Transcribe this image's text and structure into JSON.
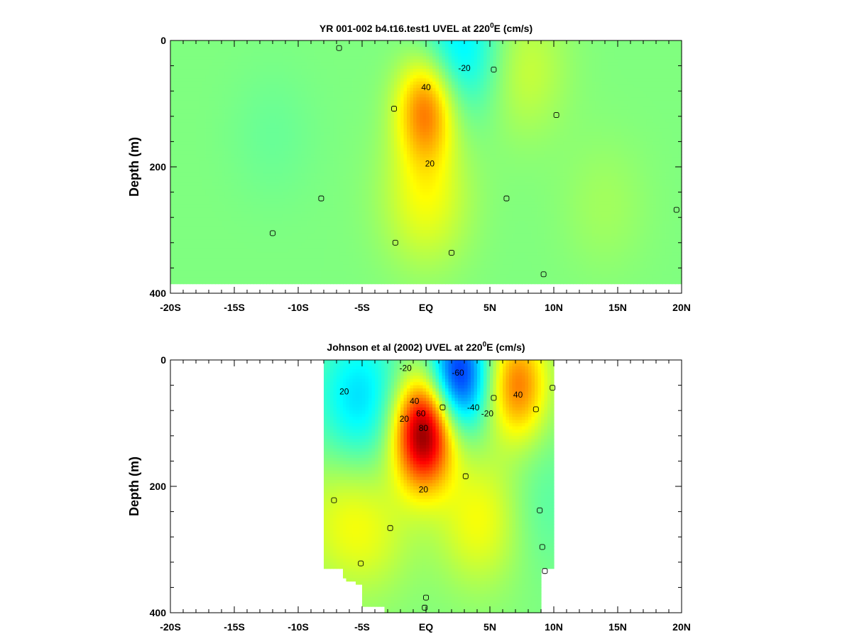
{
  "chart_data": [
    {
      "type": "heatmap",
      "title": "YR 001-002 b4.t16.test1 UVEL at 220",
      "title_superscript": "0",
      "title_suffix": "E (cm/s)",
      "xlabel": "",
      "ylabel": "Depth (m)",
      "xlim": [
        -20,
        20
      ],
      "ylim": [
        400,
        0
      ],
      "x_tick_labels": [
        "-20S",
        "-15S",
        "-10S",
        "-5S",
        "EQ",
        "5N",
        "10N",
        "15N",
        "20N"
      ],
      "y_tick_labels": [
        "0",
        "200",
        "400"
      ],
      "data_extent": {
        "lat": [
          -20,
          20
        ],
        "depth": [
          0,
          385
        ]
      },
      "features": [
        {
          "lat": 0,
          "depth": 105,
          "value": 48
        },
        {
          "lat": 0,
          "depth": 250,
          "value": 20
        },
        {
          "lat": 2.6,
          "depth": 15,
          "value": -28
        },
        {
          "lat": 7.5,
          "depth": 45,
          "value": 14
        },
        {
          "lat": -12,
          "depth": 150,
          "value": -4
        },
        {
          "lat": 14,
          "depth": 260,
          "value": 6
        }
      ],
      "contour_labels": [
        {
          "text": "40",
          "lat": 0,
          "depth": 74
        },
        {
          "text": "-20",
          "lat": 3,
          "depth": 44
        },
        {
          "text": "20",
          "lat": 0.3,
          "depth": 195
        },
        {
          "text": "0",
          "lat": -12,
          "depth": 305
        },
        {
          "text": "0",
          "lat": -8.2,
          "depth": 250
        },
        {
          "text": "0",
          "lat": -2.5,
          "depth": 108
        },
        {
          "text": "0",
          "lat": -2.4,
          "depth": 320
        },
        {
          "text": "0",
          "lat": 5.3,
          "depth": 46
        },
        {
          "text": "0",
          "lat": 10.2,
          "depth": 118
        },
        {
          "text": "0",
          "lat": 6.3,
          "depth": 250
        },
        {
          "text": "0",
          "lat": 2,
          "depth": 336
        },
        {
          "text": "0",
          "lat": 9.2,
          "depth": 370
        },
        {
          "text": "0",
          "lat": 19.6,
          "depth": 268
        },
        {
          "text": "0",
          "lat": -6.8,
          "depth": 12
        }
      ]
    },
    {
      "type": "heatmap",
      "title": "Johnson et al (2002) UVEL at 220",
      "title_superscript": "0",
      "title_suffix": "E (cm/s)",
      "xlabel": "",
      "ylabel": "Depth (m)",
      "xlim": [
        -20,
        20
      ],
      "ylim": [
        400,
        0
      ],
      "x_tick_labels": [
        "-20S",
        "-15S",
        "-10S",
        "-5S",
        "EQ",
        "5N",
        "10N",
        "15N",
        "20N"
      ],
      "y_tick_labels": [
        "0",
        "200",
        "400"
      ],
      "data_extent": {
        "lat": [
          -8,
          10
        ],
        "depth": [
          0,
          400
        ]
      },
      "features": [
        {
          "lat": -0.2,
          "depth": 115,
          "value": 90
        },
        {
          "lat": 2.5,
          "depth": 25,
          "value": -62
        },
        {
          "lat": 7.2,
          "depth": 40,
          "value": 45
        },
        {
          "lat": -5.2,
          "depth": 60,
          "value": -28
        },
        {
          "lat": -7.2,
          "depth": 250,
          "value": 12
        },
        {
          "lat": -4.2,
          "depth": 270,
          "value": 14
        },
        {
          "lat": 4.3,
          "depth": 250,
          "value": 22
        },
        {
          "lat": 8.8,
          "depth": 230,
          "value": -8
        }
      ],
      "contour_labels": [
        {
          "text": "-20",
          "lat": -1.6,
          "depth": 13
        },
        {
          "text": "-60",
          "lat": 2.5,
          "depth": 20
        },
        {
          "text": "20",
          "lat": -6.4,
          "depth": 50
        },
        {
          "text": "40",
          "lat": 7.2,
          "depth": 55
        },
        {
          "text": "40",
          "lat": -0.9,
          "depth": 65
        },
        {
          "text": "60",
          "lat": -0.4,
          "depth": 85
        },
        {
          "text": "80",
          "lat": -0.2,
          "depth": 108
        },
        {
          "text": "20",
          "lat": -1.7,
          "depth": 93
        },
        {
          "text": "-40",
          "lat": 3.7,
          "depth": 75
        },
        {
          "text": "-20",
          "lat": 4.8,
          "depth": 85
        },
        {
          "text": "20",
          "lat": -0.2,
          "depth": 205
        },
        {
          "text": "0",
          "lat": 1.3,
          "depth": 75
        },
        {
          "text": "0",
          "lat": 5.3,
          "depth": 60
        },
        {
          "text": "0",
          "lat": 8.6,
          "depth": 78
        },
        {
          "text": "0",
          "lat": 9.9,
          "depth": 44
        },
        {
          "text": "0",
          "lat": -7.2,
          "depth": 222
        },
        {
          "text": "0",
          "lat": -2.8,
          "depth": 266
        },
        {
          "text": "0",
          "lat": 3.1,
          "depth": 184
        },
        {
          "text": "0",
          "lat": 8.9,
          "depth": 238
        },
        {
          "text": "0",
          "lat": 9.1,
          "depth": 296
        },
        {
          "text": "0",
          "lat": 9.3,
          "depth": 334
        },
        {
          "text": "0",
          "lat": -5.1,
          "depth": 322
        },
        {
          "text": "0",
          "lat": 0,
          "depth": 376
        },
        {
          "text": "0",
          "lat": -0.1,
          "depth": 392
        }
      ]
    }
  ]
}
